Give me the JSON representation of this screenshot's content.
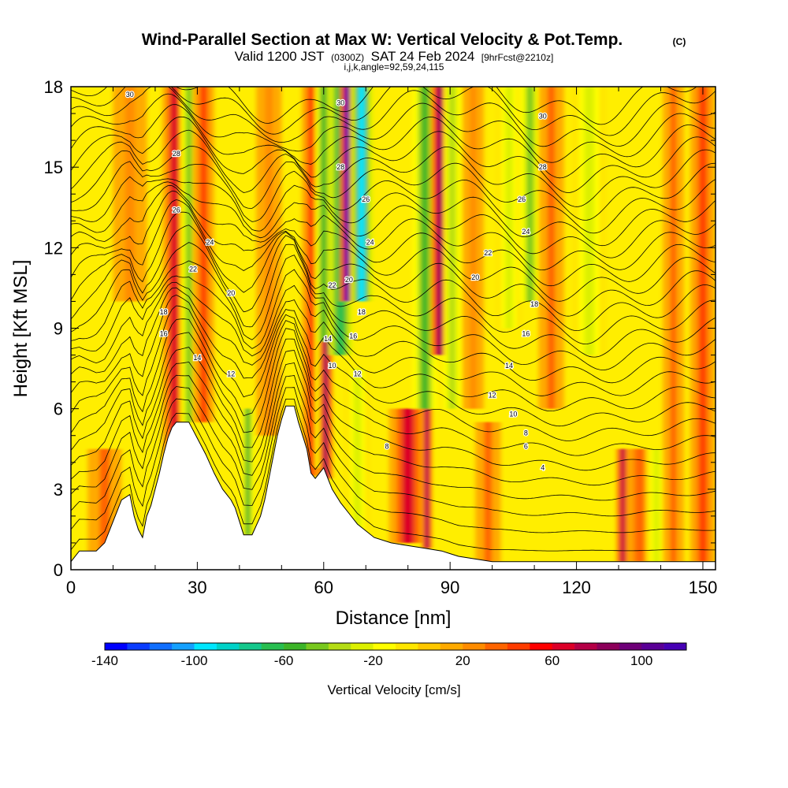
{
  "header": {
    "title": "Wind-Parallel Section at Max W: Vertical Velocity & Pot.Temp.",
    "copyright": "(C)",
    "valid_prefix": "Valid 1200 JST",
    "utc": "(0300Z)",
    "valid_date": "SAT 24 Feb 2024",
    "forecast": "[9hrFcst@2210z]",
    "indices": "i,j,k,angle=92,59,24,115"
  },
  "chart_data": {
    "type": "heatmap",
    "xlabel": "Distance [nm]",
    "ylabel": "Height [Kft MSL]",
    "xlim": [
      0,
      153
    ],
    "ylim": [
      0,
      18
    ],
    "x_ticks": [
      0,
      30,
      60,
      90,
      120,
      150
    ],
    "y_ticks": [
      0,
      3,
      6,
      9,
      12,
      15,
      18
    ],
    "colorbar": {
      "label": "Vertical Velocity [cm/s]",
      "min": -140,
      "max": 120,
      "step": 10,
      "tick_values": [
        -140,
        -100,
        -60,
        -20,
        20,
        60,
        100
      ],
      "colors": [
        "#0000ff",
        "#0a3cff",
        "#0f6eff",
        "#14a0ff",
        "#00e6ff",
        "#00d2c8",
        "#14c88c",
        "#28be50",
        "#3cb428",
        "#78c81e",
        "#b4dc14",
        "#dcf000",
        "#ffff00",
        "#ffe600",
        "#ffc800",
        "#ffaa00",
        "#ff8c00",
        "#ff6400",
        "#ff3c00",
        "#ff0000",
        "#dc0028",
        "#b40046",
        "#8c005a",
        "#6e0078",
        "#5a0096",
        "#4600b4"
      ]
    },
    "terrain_kft": [
      [
        0,
        0.3
      ],
      [
        2,
        0.7
      ],
      [
        6,
        0.7
      ],
      [
        8,
        1.0
      ],
      [
        10,
        1.8
      ],
      [
        12,
        2.6
      ],
      [
        14,
        2.8
      ],
      [
        15,
        2.0
      ],
      [
        16,
        1.5
      ],
      [
        17,
        1.2
      ],
      [
        18,
        2.0
      ],
      [
        19,
        2.4
      ],
      [
        20,
        3.0
      ],
      [
        21,
        3.6
      ],
      [
        22,
        4.3
      ],
      [
        23,
        4.9
      ],
      [
        24,
        5.3
      ],
      [
        25,
        5.5
      ],
      [
        28,
        5.5
      ],
      [
        30,
        4.9
      ],
      [
        32,
        4.3
      ],
      [
        34,
        3.6
      ],
      [
        36,
        3.0
      ],
      [
        37,
        2.8
      ],
      [
        38,
        2.6
      ],
      [
        39,
        2.3
      ],
      [
        40,
        1.8
      ],
      [
        41,
        1.3
      ],
      [
        43,
        1.3
      ],
      [
        45,
        2.0
      ],
      [
        46,
        2.6
      ],
      [
        47,
        3.4
      ],
      [
        48,
        4.2
      ],
      [
        49,
        5.0
      ],
      [
        50,
        5.6
      ],
      [
        51,
        6.1
      ],
      [
        53,
        6.1
      ],
      [
        54,
        5.5
      ],
      [
        56,
        4.5
      ],
      [
        57,
        3.6
      ],
      [
        58,
        3.4
      ],
      [
        59,
        3.6
      ],
      [
        60,
        3.8
      ],
      [
        61,
        3.4
      ],
      [
        62,
        3.0
      ],
      [
        64,
        2.5
      ],
      [
        66,
        2.1
      ],
      [
        68,
        1.7
      ],
      [
        72,
        1.2
      ],
      [
        76,
        1.0
      ],
      [
        80,
        0.9
      ],
      [
        84,
        0.8
      ],
      [
        88,
        0.7
      ],
      [
        90,
        0.6
      ],
      [
        92,
        0.5
      ],
      [
        96,
        0.4
      ],
      [
        100,
        0.3
      ],
      [
        153,
        0.3
      ]
    ],
    "w_features": [
      {
        "x": 24.5,
        "w": 2.8,
        "y0": 1.5,
        "y1": 18,
        "val": 60
      },
      {
        "x": 28.0,
        "w": 2.0,
        "y0": 5.5,
        "y1": 18,
        "val": -45
      },
      {
        "x": 31.5,
        "w": 2.5,
        "y0": 5.5,
        "y1": 18,
        "val": 40
      },
      {
        "x": 42.0,
        "w": 1.5,
        "y0": 1.3,
        "y1": 6,
        "val": -55
      },
      {
        "x": 57.0,
        "w": 2.2,
        "y0": 3.5,
        "y1": 18,
        "val": 40
      },
      {
        "x": 60.0,
        "w": 2.0,
        "y0": 3.8,
        "y1": 18,
        "val": -55
      },
      {
        "x": 60.5,
        "w": 1.6,
        "y0": 3.4,
        "y1": 8.5,
        "val": 80
      },
      {
        "x": 64.0,
        "w": 2.8,
        "y0": 8.0,
        "y1": 18,
        "val": -70
      },
      {
        "x": 65.5,
        "w": 1.6,
        "y0": 10.0,
        "y1": 18,
        "val": 110
      },
      {
        "x": 69.0,
        "w": 2.6,
        "y0": 10.0,
        "y1": 18,
        "val": -100
      },
      {
        "x": 68.0,
        "w": 3.0,
        "y0": 1.5,
        "y1": 7.5,
        "val": -30
      },
      {
        "x": 80.0,
        "w": 4.5,
        "y0": 1.0,
        "y1": 6.0,
        "val": 60
      },
      {
        "x": 84.5,
        "w": 1.2,
        "y0": 0.8,
        "y1": 6.5,
        "val": 85
      },
      {
        "x": 84.0,
        "w": 2.8,
        "y0": 6.0,
        "y1": 18,
        "val": -55
      },
      {
        "x": 87.5,
        "w": 2.0,
        "y0": 8.0,
        "y1": 18,
        "val": 85
      },
      {
        "x": 90.5,
        "w": 2.0,
        "y0": 6.0,
        "y1": 18,
        "val": -40
      },
      {
        "x": 95.5,
        "w": 2.5,
        "y0": 6.0,
        "y1": 18,
        "val": 25
      },
      {
        "x": 104.0,
        "w": 3.0,
        "y0": 9.0,
        "y1": 18,
        "val": -30
      },
      {
        "x": 109.0,
        "w": 2.5,
        "y0": 10.0,
        "y1": 18,
        "val": -45
      },
      {
        "x": 114.0,
        "w": 3.0,
        "y0": 6.0,
        "y1": 18,
        "val": 30
      },
      {
        "x": 123.0,
        "w": 4.0,
        "y0": 8.0,
        "y1": 18,
        "val": -25
      },
      {
        "x": 131.0,
        "w": 1.5,
        "y0": 0.3,
        "y1": 4.5,
        "val": 75
      },
      {
        "x": 135.0,
        "w": 3.0,
        "y0": 0.3,
        "y1": 4.5,
        "val": 35
      },
      {
        "x": 139.0,
        "w": 2.5,
        "y0": 0.3,
        "y1": 4.5,
        "val": -25
      },
      {
        "x": 143.0,
        "w": 2.5,
        "y0": 0.3,
        "y1": 18,
        "val": 30
      },
      {
        "x": 150.0,
        "w": 3.0,
        "y0": 0.3,
        "y1": 18,
        "val": 40
      },
      {
        "x": 8.0,
        "w": 4.0,
        "y0": 0.5,
        "y1": 4.5,
        "val": 30
      },
      {
        "x": 47.0,
        "w": 3.0,
        "y0": 5.0,
        "y1": 18,
        "val": 25
      },
      {
        "x": 14.0,
        "w": 4.0,
        "y0": 10.0,
        "y1": 18,
        "val": 25
      },
      {
        "x": 99.0,
        "w": 3.0,
        "y0": 0.3,
        "y1": 5.5,
        "val": 30
      }
    ],
    "theta_contours": {
      "min": 1,
      "max": 31,
      "step": 1,
      "label_step": 2
    },
    "contour_labels": [
      {
        "text": "30",
        "x": 14,
        "y": 17.7
      },
      {
        "text": "30",
        "x": 64,
        "y": 17.4
      },
      {
        "text": "30",
        "x": 112,
        "y": 16.9
      },
      {
        "text": "28",
        "x": 25,
        "y": 15.5
      },
      {
        "text": "28",
        "x": 64,
        "y": 15.0
      },
      {
        "text": "28",
        "x": 112,
        "y": 15.0
      },
      {
        "text": "26",
        "x": 25,
        "y": 13.4
      },
      {
        "text": "26",
        "x": 70,
        "y": 13.8
      },
      {
        "text": "26",
        "x": 107,
        "y": 13.8
      },
      {
        "text": "24",
        "x": 33,
        "y": 12.2
      },
      {
        "text": "24",
        "x": 71,
        "y": 12.2
      },
      {
        "text": "24",
        "x": 108,
        "y": 12.6
      },
      {
        "text": "22",
        "x": 29,
        "y": 11.2
      },
      {
        "text": "22",
        "x": 62,
        "y": 10.6
      },
      {
        "text": "22",
        "x": 99,
        "y": 11.8
      },
      {
        "text": "20",
        "x": 38,
        "y": 10.3
      },
      {
        "text": "20",
        "x": 66,
        "y": 10.8
      },
      {
        "text": "20",
        "x": 96,
        "y": 10.9
      },
      {
        "text": "18",
        "x": 22,
        "y": 9.6
      },
      {
        "text": "18",
        "x": 69,
        "y": 9.6
      },
      {
        "text": "18",
        "x": 110,
        "y": 9.9
      },
      {
        "text": "16",
        "x": 22,
        "y": 8.8
      },
      {
        "text": "16",
        "x": 67,
        "y": 8.7
      },
      {
        "text": "16",
        "x": 108,
        "y": 8.8
      },
      {
        "text": "14",
        "x": 30,
        "y": 7.9
      },
      {
        "text": "14",
        "x": 61,
        "y": 8.6
      },
      {
        "text": "14",
        "x": 104,
        "y": 7.6
      },
      {
        "text": "12",
        "x": 38,
        "y": 7.3
      },
      {
        "text": "12",
        "x": 68,
        "y": 7.3
      },
      {
        "text": "12",
        "x": 100,
        "y": 6.5
      },
      {
        "text": "10",
        "x": 62,
        "y": 7.6
      },
      {
        "text": "10",
        "x": 105,
        "y": 5.8
      },
      {
        "text": "8",
        "x": 75,
        "y": 4.6
      },
      {
        "text": "8",
        "x": 108,
        "y": 5.1
      },
      {
        "text": "6",
        "x": 108,
        "y": 4.6
      },
      {
        "text": "4",
        "x": 112,
        "y": 3.8
      }
    ]
  }
}
